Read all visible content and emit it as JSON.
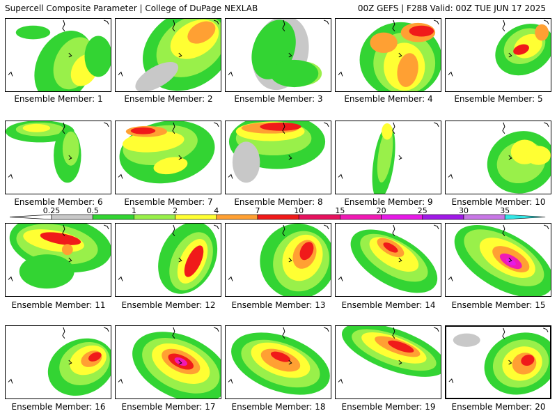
{
  "header": {
    "left": "Supercell Composite Parameter | College of DuPage NEXLAB",
    "right": "00Z GEFS | F288 Valid: 00Z TUE JUN 17 2025"
  },
  "caption_prefix": "Ensemble Member: ",
  "colorbar": {
    "labels": [
      "0.25",
      "0.5",
      "1",
      "2",
      "4",
      "7",
      "10",
      "15",
      "20",
      "25",
      "30",
      "35"
    ],
    "colors": [
      "#c8c8c8",
      "#33d433",
      "#99f04a",
      "#ffff33",
      "#ffa033",
      "#f01a1a",
      "#e6125e",
      "#f01ab4",
      "#e61ae6",
      "#a01ae6",
      "#c878e6",
      "#33e6e6"
    ]
  },
  "members": [
    {
      "label": "Ensemble Member: 1"
    },
    {
      "label": "Ensemble Member: 2"
    },
    {
      "label": "Ensemble Member: 3"
    },
    {
      "label": "Ensemble Member: 4"
    },
    {
      "label": "Ensemble Member: 5"
    },
    {
      "label": "Ensemble Member: 6"
    },
    {
      "label": "Ensemble Member: 7"
    },
    {
      "label": "Ensemble Member: 8"
    },
    {
      "label": "Ensemble Member: 9"
    },
    {
      "label": "Ensemble Member: 10"
    },
    {
      "label": "Ensemble Member: 11"
    },
    {
      "label": "Ensemble Member: 12"
    },
    {
      "label": "Ensemble Member: 13"
    },
    {
      "label": "Ensemble Member: 14"
    },
    {
      "label": "Ensemble Member: 15"
    },
    {
      "label": "Ensemble Member: 16"
    },
    {
      "label": "Ensemble Member: 17"
    },
    {
      "label": "Ensemble Member: 18"
    },
    {
      "label": "Ensemble Member: 19"
    },
    {
      "label": "Ensemble Member: 20"
    }
  ]
}
